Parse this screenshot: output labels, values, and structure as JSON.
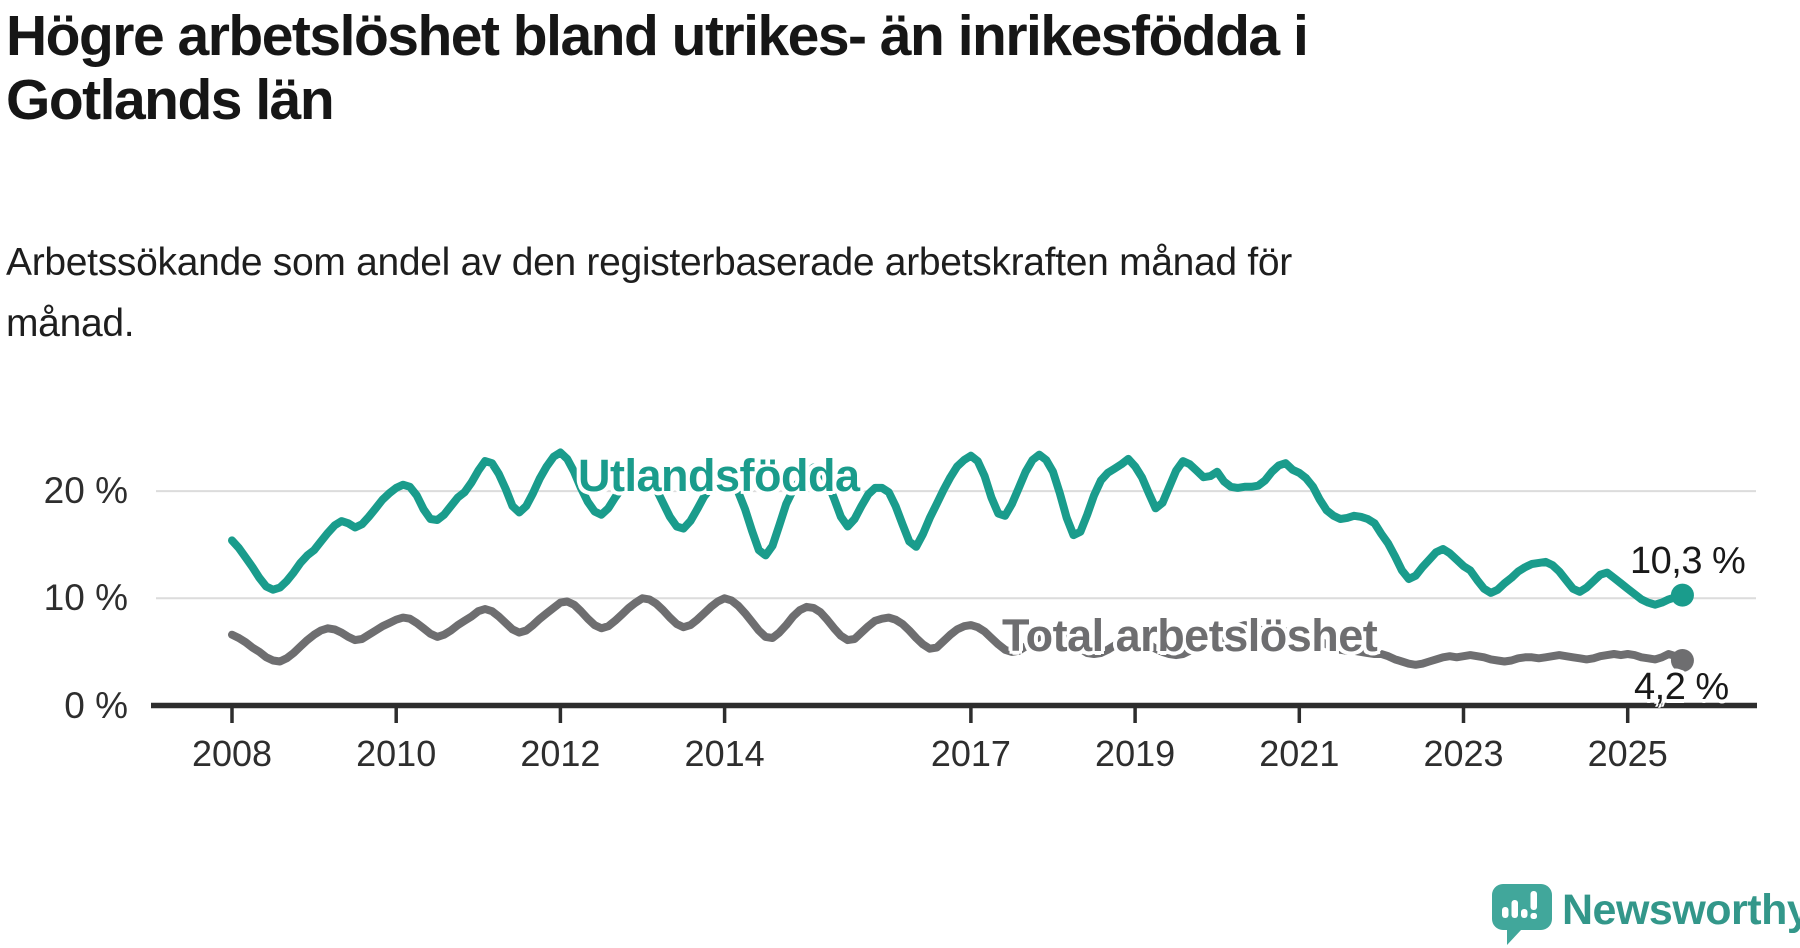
{
  "header": {
    "title_lines": [
      "Högre arbetslöshet bland utrikes- än inrikesfödda i",
      "Gotlands län"
    ],
    "subtitle_lines": [
      "Arbetssökande som andel av den registerbaserade arbetskraften månad för",
      "månad."
    ]
  },
  "chart_data": {
    "type": "line",
    "unit": "%",
    "x_start": {
      "year": 2008,
      "month": 1
    },
    "x_end": {
      "year": 2025,
      "month": 9
    },
    "x_resolution": "monthly",
    "ylim": [
      0,
      24.5
    ],
    "grid": "horizontal-only",
    "y_ticks": [
      {
        "value": 0,
        "label": "0 %"
      },
      {
        "value": 10,
        "label": "10 %"
      },
      {
        "value": 20,
        "label": "20 %"
      }
    ],
    "x_ticks": [
      2008,
      2010,
      2012,
      2014,
      2017,
      2019,
      2021,
      2023,
      2025
    ],
    "colors": {
      "grid": "#dcdcdc",
      "axis": "#2d2d2d",
      "tick": "#2d2d2d"
    },
    "series": [
      {
        "name": "Utlandsfödda",
        "color": "#1a9c8c",
        "end_label": "10,3 %",
        "end_value": 10.3,
        "values": [
          15.4,
          14.7,
          13.8,
          12.9,
          11.9,
          11.1,
          10.8,
          11.0,
          11.6,
          12.4,
          13.3,
          14.0,
          14.5,
          15.3,
          16.1,
          16.8,
          17.2,
          17.0,
          16.6,
          16.9,
          17.6,
          18.4,
          19.2,
          19.8,
          20.3,
          20.6,
          20.4,
          19.6,
          18.3,
          17.4,
          17.3,
          17.8,
          18.6,
          19.4,
          19.9,
          20.8,
          21.9,
          22.8,
          22.6,
          21.6,
          20.2,
          18.6,
          18.0,
          18.6,
          19.8,
          21.2,
          22.3,
          23.2,
          23.6,
          23.0,
          21.8,
          20.3,
          19.0,
          18.1,
          17.8,
          18.4,
          19.4,
          20.3,
          20.8,
          21.0,
          21.2,
          21.0,
          20.2,
          18.9,
          17.6,
          16.7,
          16.5,
          17.2,
          18.3,
          19.5,
          20.3,
          20.8,
          21.1,
          20.9,
          19.9,
          18.3,
          16.3,
          14.5,
          14.0,
          14.9,
          16.8,
          18.8,
          20.1,
          21.0,
          21.6,
          22.2,
          22.0,
          20.9,
          19.3,
          17.6,
          16.7,
          17.4,
          18.6,
          19.7,
          20.3,
          20.3,
          19.9,
          18.6,
          16.9,
          15.3,
          14.8,
          16.0,
          17.5,
          18.8,
          20.1,
          21.3,
          22.3,
          22.9,
          23.3,
          22.8,
          21.4,
          19.4,
          17.9,
          17.7,
          18.8,
          20.3,
          21.8,
          22.9,
          23.4,
          22.9,
          21.8,
          19.8,
          17.5,
          15.9,
          16.2,
          17.8,
          19.6,
          21.0,
          21.7,
          22.1,
          22.5,
          23.0,
          22.3,
          21.3,
          19.8,
          18.4,
          18.9,
          20.4,
          21.9,
          22.8,
          22.5,
          21.9,
          21.3,
          21.4,
          21.8,
          20.9,
          20.4,
          20.3,
          20.4,
          20.4,
          20.5,
          21.0,
          21.8,
          22.4,
          22.6,
          22.0,
          21.7,
          21.2,
          20.4,
          19.2,
          18.2,
          17.7,
          17.4,
          17.5,
          17.7,
          17.6,
          17.4,
          17.0,
          16.0,
          15.1,
          13.9,
          12.6,
          11.8,
          12.1,
          12.9,
          13.6,
          14.3,
          14.6,
          14.2,
          13.6,
          13.0,
          12.6,
          11.7,
          10.9,
          10.5,
          10.8,
          11.4,
          11.9,
          12.5,
          12.9,
          13.2,
          13.3,
          13.4,
          13.1,
          12.5,
          11.7,
          10.9,
          10.6,
          11.0,
          11.6,
          12.2,
          12.4,
          11.9,
          11.4,
          10.9,
          10.4,
          9.9,
          9.6,
          9.4,
          9.6,
          9.9,
          10.1,
          10.3
        ]
      },
      {
        "name": "Total arbetslöshet",
        "color": "#6e6e70",
        "end_label": "4,2 %",
        "end_value": 4.2,
        "values": [
          6.6,
          6.3,
          5.9,
          5.4,
          5.0,
          4.5,
          4.2,
          4.1,
          4.4,
          4.9,
          5.5,
          6.1,
          6.6,
          7.0,
          7.2,
          7.1,
          6.8,
          6.4,
          6.1,
          6.2,
          6.6,
          7.0,
          7.4,
          7.7,
          8.0,
          8.2,
          8.1,
          7.7,
          7.2,
          6.7,
          6.4,
          6.6,
          7.0,
          7.5,
          7.9,
          8.3,
          8.8,
          9.0,
          8.8,
          8.3,
          7.7,
          7.1,
          6.8,
          7.0,
          7.5,
          8.1,
          8.6,
          9.1,
          9.6,
          9.7,
          9.4,
          8.8,
          8.1,
          7.5,
          7.2,
          7.4,
          7.9,
          8.5,
          9.1,
          9.6,
          10.0,
          9.9,
          9.5,
          8.9,
          8.2,
          7.6,
          7.3,
          7.5,
          8.0,
          8.6,
          9.2,
          9.7,
          10.0,
          9.8,
          9.3,
          8.6,
          7.8,
          7.0,
          6.4,
          6.3,
          6.8,
          7.5,
          8.3,
          8.9,
          9.2,
          9.1,
          8.7,
          8.0,
          7.2,
          6.5,
          6.1,
          6.2,
          6.8,
          7.4,
          7.9,
          8.1,
          8.2,
          8.0,
          7.6,
          7.0,
          6.3,
          5.7,
          5.3,
          5.4,
          6.0,
          6.6,
          7.1,
          7.4,
          7.5,
          7.3,
          6.9,
          6.3,
          5.7,
          5.2,
          5.0,
          5.1,
          5.5,
          6.0,
          6.4,
          6.6,
          6.7,
          6.5,
          6.2,
          5.7,
          5.3,
          4.9,
          4.8,
          4.9,
          5.2,
          5.6,
          5.9,
          6.1,
          6.1,
          6.0,
          5.7,
          5.3,
          5.0,
          4.8,
          4.7,
          4.8,
          5.1,
          5.4,
          5.7,
          5.9,
          6.1,
          6.3,
          6.7,
          7.3,
          7.5,
          7.4,
          7.1,
          7.0,
          7.0,
          7.0,
          6.9,
          6.8,
          6.7,
          6.5,
          6.3,
          6.0,
          5.7,
          5.4,
          5.2,
          5.1,
          5.1,
          5.0,
          4.9,
          4.8,
          4.8,
          4.6,
          4.3,
          4.1,
          3.9,
          3.8,
          3.9,
          4.1,
          4.3,
          4.5,
          4.6,
          4.5,
          4.6,
          4.7,
          4.6,
          4.5,
          4.3,
          4.2,
          4.1,
          4.2,
          4.4,
          4.5,
          4.5,
          4.4,
          4.5,
          4.6,
          4.7,
          4.6,
          4.5,
          4.4,
          4.3,
          4.4,
          4.6,
          4.7,
          4.8,
          4.7,
          4.8,
          4.7,
          4.5,
          4.4,
          4.3,
          4.5,
          4.8,
          4.6,
          4.2
        ]
      }
    ]
  },
  "footer": {
    "brand": "Newsworthy",
    "logo_color": "#41a79b"
  }
}
